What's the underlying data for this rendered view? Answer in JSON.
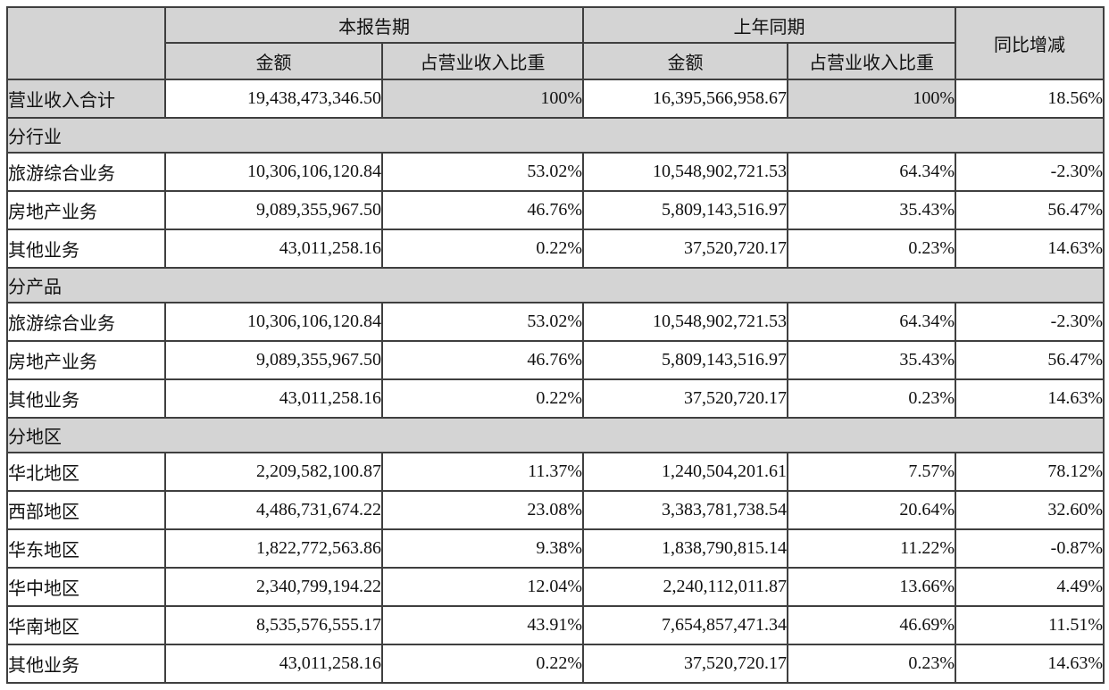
{
  "colors": {
    "header_fill": "#d4d4d4",
    "row_fill": "#ffffff",
    "border": "#3f3f3f",
    "text": "#111111",
    "page_background": "#ffffff"
  },
  "table": {
    "header": {
      "corner": "",
      "current_period": "本报告期",
      "prior_period": "上年同期",
      "yoy": "同比增减",
      "sub_headers": [
        "金额",
        "占营业收入比重",
        "金额",
        "占营业收入比重"
      ]
    },
    "rows": [
      {
        "type": "total",
        "label": "营业收入合计",
        "values": [
          "19,438,473,346.50",
          "100%",
          "16,395,566,958.67",
          "100%",
          "18.56%"
        ]
      },
      {
        "type": "section",
        "label": "分行业"
      },
      {
        "type": "data",
        "label": "旅游综合业务",
        "values": [
          "10,306,106,120.84",
          "53.02%",
          "10,548,902,721.53",
          "64.34%",
          "-2.30%"
        ]
      },
      {
        "type": "data",
        "label": "房地产业务",
        "values": [
          "9,089,355,967.50",
          "46.76%",
          "5,809,143,516.97",
          "35.43%",
          "56.47%"
        ]
      },
      {
        "type": "data",
        "label": "其他业务",
        "values": [
          "43,011,258.16",
          "0.22%",
          "37,520,720.17",
          "0.23%",
          "14.63%"
        ]
      },
      {
        "type": "section",
        "label": "分产品"
      },
      {
        "type": "data",
        "label": "旅游综合业务",
        "values": [
          "10,306,106,120.84",
          "53.02%",
          "10,548,902,721.53",
          "64.34%",
          "-2.30%"
        ]
      },
      {
        "type": "data",
        "label": "房地产业务",
        "values": [
          "9,089,355,967.50",
          "46.76%",
          "5,809,143,516.97",
          "35.43%",
          "56.47%"
        ]
      },
      {
        "type": "data",
        "label": "其他业务",
        "values": [
          "43,011,258.16",
          "0.22%",
          "37,520,720.17",
          "0.23%",
          "14.63%"
        ]
      },
      {
        "type": "section",
        "label": "分地区"
      },
      {
        "type": "data",
        "label": "华北地区",
        "values": [
          "2,209,582,100.87",
          "11.37%",
          "1,240,504,201.61",
          "7.57%",
          "78.12%"
        ]
      },
      {
        "type": "data",
        "label": "西部地区",
        "values": [
          "4,486,731,674.22",
          "23.08%",
          "3,383,781,738.54",
          "20.64%",
          "32.60%"
        ]
      },
      {
        "type": "data",
        "label": "华东地区",
        "values": [
          "1,822,772,563.86",
          "9.38%",
          "1,838,790,815.14",
          "11.22%",
          "-0.87%"
        ]
      },
      {
        "type": "data",
        "label": "华中地区",
        "values": [
          "2,340,799,194.22",
          "12.04%",
          "2,240,112,011.87",
          "13.66%",
          "4.49%"
        ]
      },
      {
        "type": "data",
        "label": "华南地区",
        "values": [
          "8,535,576,555.17",
          "43.91%",
          "7,654,857,471.34",
          "46.69%",
          "11.51%"
        ]
      },
      {
        "type": "data",
        "label": "其他业务",
        "values": [
          "43,011,258.16",
          "0.22%",
          "37,520,720.17",
          "0.23%",
          "14.63%"
        ]
      }
    ]
  }
}
